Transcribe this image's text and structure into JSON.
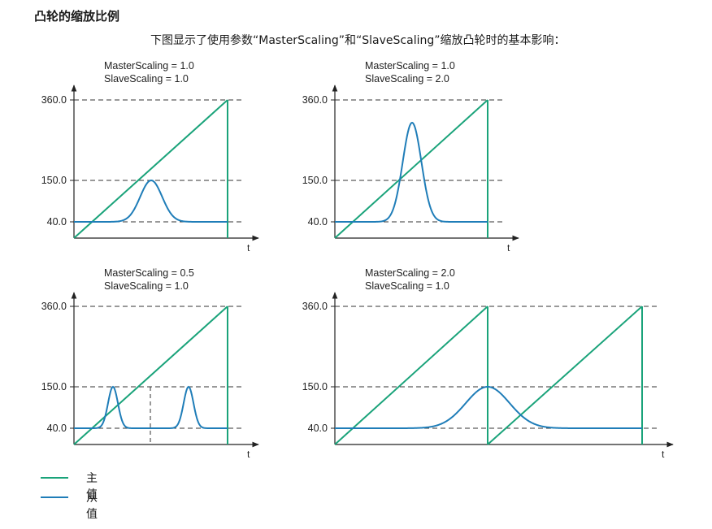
{
  "title": "凸轮的缩放比例",
  "intro": "下图显示了使用参数“MasterScaling”和“SlaveScaling”缩放凸轮时的基本影响：",
  "colors": {
    "master": "#1aa37a",
    "slave": "#1f7db8",
    "axis": "#222222",
    "dash": "#333333"
  },
  "legend": {
    "master": "主值",
    "slave": "从值"
  },
  "chart_data": [
    {
      "type": "line",
      "labels": [
        "MasterScaling = 1.0",
        "SlaveScaling = 1.0"
      ],
      "yticks": [
        "360.0",
        "150.0",
        "40.0"
      ],
      "xlabel": "t",
      "master_scaling": 1.0,
      "slave_scaling": 1.0
    },
    {
      "type": "line",
      "labels": [
        "MasterScaling = 1.0",
        "SlaveScaling = 2.0"
      ],
      "yticks": [
        "360.0",
        "150.0",
        "40.0"
      ],
      "xlabel": "t",
      "master_scaling": 1.0,
      "slave_scaling": 2.0
    },
    {
      "type": "line",
      "labels": [
        "MasterScaling = 0.5",
        "SlaveScaling = 1.0"
      ],
      "yticks": [
        "360.0",
        "150.0",
        "40.0"
      ],
      "xlabel": "t",
      "master_scaling": 0.5,
      "slave_scaling": 1.0
    },
    {
      "type": "line",
      "labels": [
        "MasterScaling = 2.0",
        "SlaveScaling = 1.0"
      ],
      "yticks": [
        "360.0",
        "150.0",
        "40.0"
      ],
      "xlabel": "t",
      "master_scaling": 2.0,
      "slave_scaling": 1.0
    }
  ]
}
